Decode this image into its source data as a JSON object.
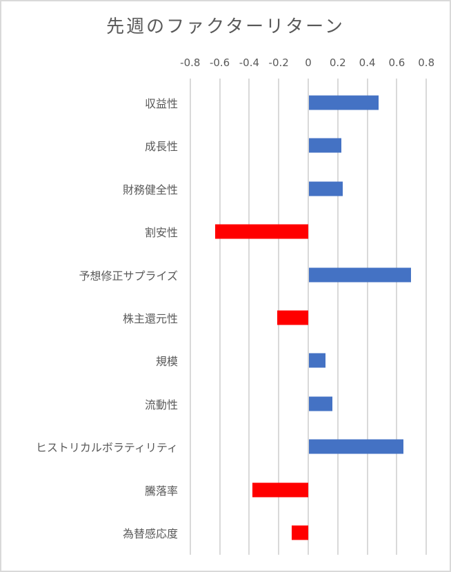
{
  "chart_data": {
    "type": "bar",
    "orientation": "horizontal",
    "title": "先週のファクターリターン",
    "xlabel": "",
    "ylabel": "",
    "xlim": [
      -0.8,
      0.8
    ],
    "x_ticks": [
      "-0.8",
      "-0.6",
      "-0.4",
      "-0.2",
      "0",
      "0.2",
      "0.4",
      "0.6",
      "0.8"
    ],
    "grid": "vertical",
    "legend": "none",
    "categories": [
      "収益性",
      "成長性",
      "財務健全性",
      "割安性",
      "予想修正サプライズ",
      "株主還元性",
      "規模",
      "流動性",
      "ヒストリカルボラティリティ",
      "騰落率",
      "為替感応度"
    ],
    "values": [
      0.47,
      0.22,
      0.23,
      -0.63,
      0.69,
      -0.21,
      0.11,
      0.16,
      0.64,
      -0.38,
      -0.11
    ],
    "colors": {
      "positive": "#4472C4",
      "negative": "#FF0000",
      "grid": "#d9d9d9",
      "text": "#595959"
    }
  }
}
